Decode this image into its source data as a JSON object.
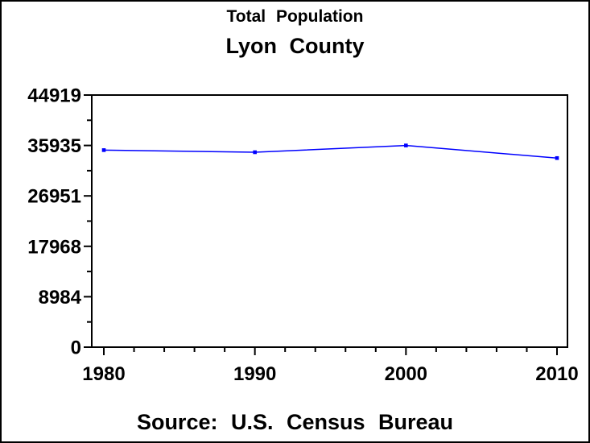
{
  "chart_data": {
    "type": "line",
    "title": "Total Population",
    "subtitle": "Lyon County",
    "footnote": "Source: U.S. Census Bureau",
    "x": [
      1980,
      1990,
      2000,
      2010
    ],
    "x_tick_labels": [
      "1980",
      "1990",
      "2000",
      "2010"
    ],
    "series": [
      {
        "name": "Total Population",
        "values": [
          35108,
          34732,
          35935,
          33690
        ],
        "color": "#0000ff",
        "marker": "square"
      }
    ],
    "xlabel": "",
    "ylabel": "",
    "xlim": [
      1980,
      2010
    ],
    "ylim": [
      0,
      44919
    ],
    "y_ticks": [
      0,
      8984,
      17968,
      26951,
      35935,
      44919
    ],
    "y_tick_labels": [
      "0",
      "8984",
      "17968",
      "26951",
      "35935",
      "44919"
    ],
    "x_minor_step_years": 2,
    "y_minor_per_major_interval": 1,
    "grid": false,
    "legend": "none",
    "axis_color": "#000000",
    "text_color": "#000000",
    "background": "#ffffff"
  }
}
